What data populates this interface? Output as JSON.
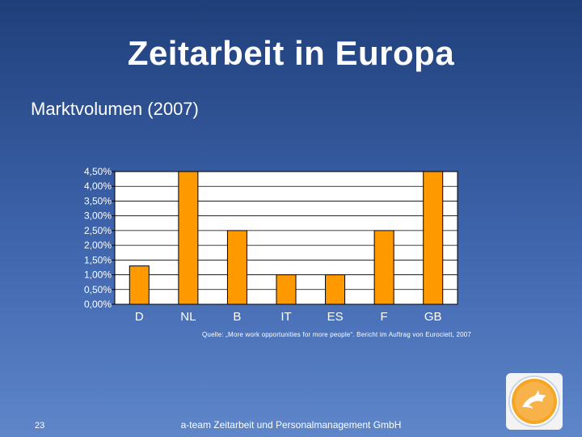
{
  "slide": {
    "title": "Zeitarbeit in Europa",
    "subtitle": "Marktvolumen (2007)",
    "source_note": "Quelle: „More work opportunities for more people“. Bericht im Auftrag von Eurociett, 2007",
    "page_number": "23",
    "footer_company": "a-team Zeitarbeit und Personalmanagement GmbH"
  },
  "chart_data": {
    "type": "bar",
    "categories": [
      "D",
      "NL",
      "B",
      "IT",
      "ES",
      "F",
      "GB"
    ],
    "values": [
      1.3,
      4.5,
      2.5,
      1.0,
      1.0,
      2.5,
      4.5
    ],
    "yticks": [
      "0,00%",
      "0,50%",
      "1,00%",
      "1,50%",
      "2,00%",
      "2,50%",
      "3,00%",
      "3,50%",
      "4,00%",
      "4,50%"
    ],
    "ylim": [
      0,
      4.5
    ],
    "grid": true,
    "bar_color": "#ff9900",
    "plot_background": "#ffffff"
  },
  "logo": {
    "icon": "dolphin-logo-icon",
    "colors": {
      "ring": "#f5a623",
      "inner": "#f7b24a",
      "border": "#c8d4e8"
    }
  }
}
